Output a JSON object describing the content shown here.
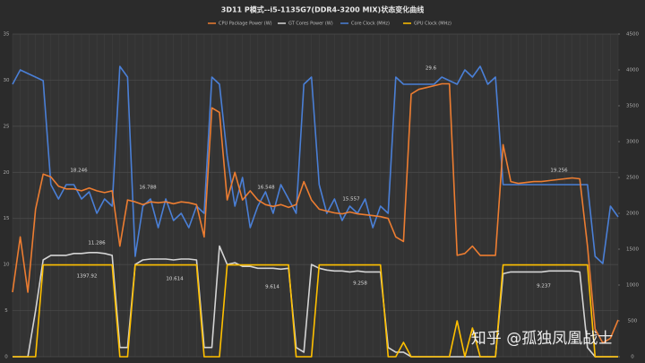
{
  "chart_data": {
    "type": "line",
    "title": "3D11 P模式--i5-1135G7(DDR4-3200 MIX)状态变化曲线",
    "watermark": "知乎 @孤独凤凰战士",
    "ylim": [
      0,
      35
    ],
    "yticks": [
      0,
      5,
      10,
      15,
      20,
      25,
      30,
      35
    ],
    "y2lim": [
      0,
      4500
    ],
    "y2ticks": [
      0,
      500,
      1000,
      1500,
      2000,
      2500,
      3000,
      3500,
      4000,
      4500
    ],
    "grid": true,
    "legend": "top",
    "series": [
      {
        "name": "CPU Package Power (W)",
        "color": "#ed7d31",
        "values": [
          7,
          13,
          7,
          16,
          19.8,
          19.5,
          18.5,
          18.2,
          18.2,
          18.0,
          18.3,
          18.0,
          17.8,
          18.0,
          12,
          17,
          16.8,
          16.5,
          16.8,
          16.7,
          16.8,
          16.6,
          16.8,
          16.7,
          16.5,
          13,
          27,
          26.5,
          17,
          20,
          17,
          18,
          17,
          16.5,
          16.3,
          16.5,
          16.2,
          16.5,
          19,
          17,
          16,
          15.8,
          15.6,
          15.5,
          15.7,
          15.5,
          15.4,
          15.3,
          15.2,
          15,
          13,
          12.5,
          28.5,
          29,
          29.2,
          29.4,
          29.6,
          29.6,
          11,
          11.2,
          12,
          11,
          11,
          11,
          23,
          19,
          18.8,
          18.9,
          19,
          19,
          19.1,
          19.2,
          19.3,
          19.4,
          19.3,
          12,
          3,
          1.5,
          2,
          4
        ]
      },
      {
        "name": "GT Cores Power (W)",
        "color": "#d4d4d4",
        "values": [
          0,
          0,
          0,
          5,
          10.5,
          11,
          11,
          11,
          11.2,
          11.2,
          11.3,
          11.3,
          11.2,
          11,
          1,
          1,
          10,
          10.5,
          10.6,
          10.6,
          10.6,
          10.5,
          10.6,
          10.6,
          10.5,
          1,
          1,
          12,
          10,
          10.2,
          9.8,
          9.8,
          9.6,
          9.6,
          9.6,
          9.5,
          9.6,
          1,
          0.5,
          10,
          9.6,
          9.4,
          9.3,
          9.3,
          9.2,
          9.3,
          9.2,
          9.2,
          9.2,
          1,
          0.5,
          0.5,
          0,
          0,
          0,
          0,
          0,
          0,
          0,
          0,
          0,
          0,
          0,
          0,
          9,
          9.2,
          9.2,
          9.2,
          9.2,
          9.2,
          9.3,
          9.3,
          9.3,
          9.3,
          9.2,
          1,
          0,
          0,
          0,
          0
        ]
      },
      {
        "name": "Core Clock (MHz)",
        "color": "#4a7fd6",
        "axis": "y2",
        "values": [
          3800,
          4000,
          3950,
          3900,
          3850,
          2400,
          2200,
          2400,
          2400,
          2200,
          2300,
          2000,
          2200,
          2100,
          4050,
          3900,
          1400,
          2100,
          2200,
          1800,
          2200,
          1900,
          2000,
          1800,
          2100,
          2000,
          3900,
          3800,
          2800,
          2100,
          2500,
          1800,
          2100,
          2300,
          2000,
          2400,
          2200,
          2000,
          3800,
          3900,
          2400,
          2000,
          2200,
          1900,
          2100,
          2000,
          2200,
          1800,
          2100,
          2000,
          3900,
          3800,
          3800,
          3800,
          3800,
          3800,
          3900,
          3850,
          3800,
          4000,
          3900,
          4050,
          3800,
          3900,
          2400,
          2400,
          2400,
          2400,
          2400,
          2400,
          2400,
          2400,
          2400,
          2400,
          2400,
          2400,
          1400,
          1300,
          2100,
          1950
        ]
      },
      {
        "name": "GPU Clock (MHz)",
        "color": "#ffc000",
        "axis": "y2",
        "values": [
          0,
          0,
          0,
          0,
          1280,
          1280,
          1280,
          1280,
          1280,
          1280,
          1280,
          1280,
          1280,
          1280,
          0,
          0,
          1280,
          1280,
          1280,
          1280,
          1280,
          1280,
          1280,
          1280,
          1280,
          0,
          0,
          0,
          1280,
          1280,
          1280,
          1280,
          1280,
          1280,
          1280,
          1280,
          1280,
          0,
          0,
          0,
          1280,
          1280,
          1280,
          1280,
          1280,
          1280,
          1280,
          1280,
          1280,
          0,
          0,
          200,
          0,
          0,
          0,
          0,
          0,
          0,
          500,
          0,
          400,
          0,
          0,
          0,
          1280,
          1280,
          1280,
          1280,
          1280,
          1280,
          1280,
          1280,
          1280,
          1280,
          1280,
          1280,
          0,
          0,
          0,
          0
        ]
      }
    ],
    "annotations": [
      "18.246",
      "16.788",
      "16.548",
      "15.557",
      "29.6",
      "19.256",
      "11.286",
      "10.614",
      "9.614",
      "9.258",
      "9.237",
      "1397.92"
    ]
  }
}
